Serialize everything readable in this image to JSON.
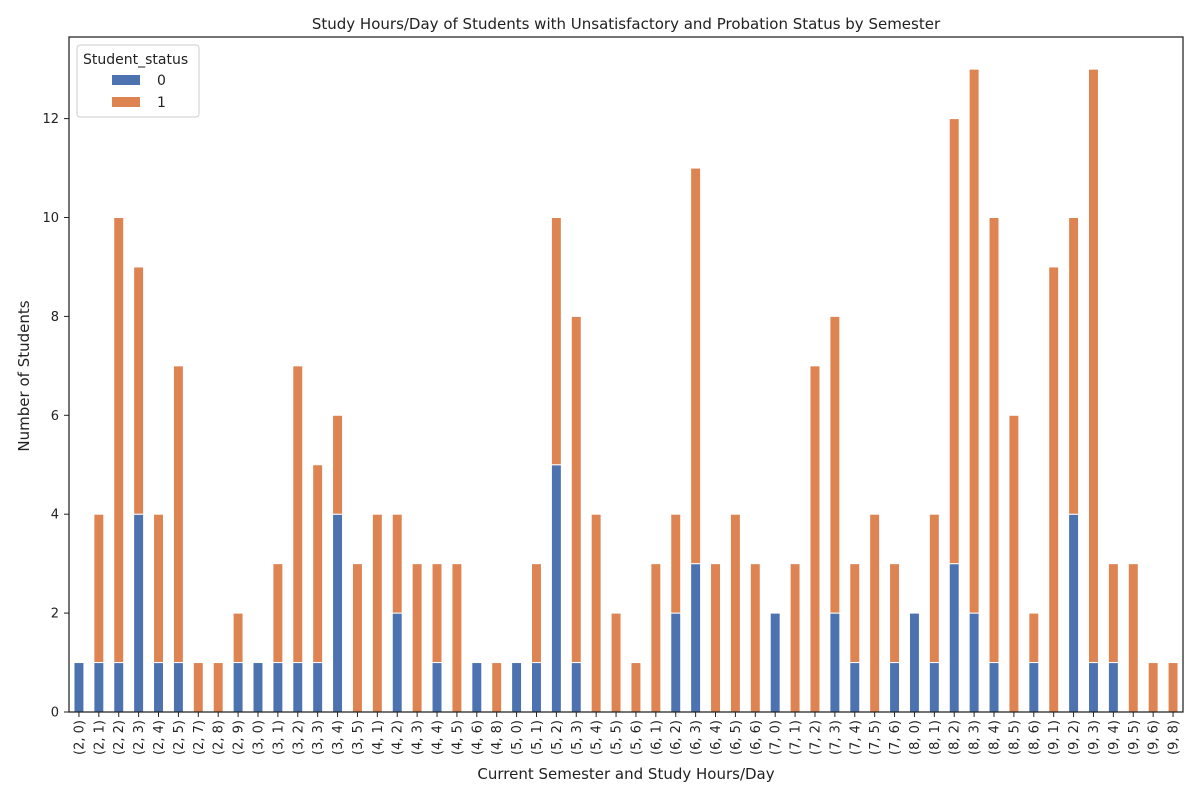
{
  "chart_data": {
    "type": "bar",
    "stacked": true,
    "title": "Study Hours/Day of Students with Unsatisfactory and Probation Status by Semester",
    "xlabel": "Current Semester and Study Hours/Day",
    "ylabel": "Number of Students",
    "ylim": [
      0,
      13.65
    ],
    "yticks": [
      0,
      2,
      4,
      6,
      8,
      10,
      12
    ],
    "grid": false,
    "legend": {
      "title": "Student_status",
      "position": "top-left"
    },
    "categories": [
      "(2, 0)",
      "(2, 1)",
      "(2, 2)",
      "(2, 3)",
      "(2, 4)",
      "(2, 5)",
      "(2, 7)",
      "(2, 8)",
      "(2, 9)",
      "(3, 0)",
      "(3, 1)",
      "(3, 2)",
      "(3, 3)",
      "(3, 4)",
      "(3, 5)",
      "(4, 1)",
      "(4, 2)",
      "(4, 3)",
      "(4, 4)",
      "(4, 5)",
      "(4, 6)",
      "(4, 8)",
      "(5, 0)",
      "(5, 1)",
      "(5, 2)",
      "(5, 3)",
      "(5, 4)",
      "(5, 5)",
      "(5, 6)",
      "(6, 1)",
      "(6, 2)",
      "(6, 3)",
      "(6, 4)",
      "(6, 5)",
      "(6, 6)",
      "(7, 0)",
      "(7, 1)",
      "(7, 2)",
      "(7, 3)",
      "(7, 4)",
      "(7, 5)",
      "(7, 6)",
      "(8, 0)",
      "(8, 1)",
      "(8, 2)",
      "(8, 3)",
      "(8, 4)",
      "(8, 5)",
      "(8, 6)",
      "(9, 1)",
      "(9, 2)",
      "(9, 3)",
      "(9, 4)",
      "(9, 5)",
      "(9, 6)",
      "(9, 8)"
    ],
    "series": [
      {
        "name": "0",
        "color": "#4c72b0",
        "values": [
          1,
          1,
          1,
          4,
          1,
          1,
          0,
          0,
          1,
          1,
          1,
          1,
          1,
          4,
          0,
          0,
          2,
          0,
          1,
          0,
          1,
          0,
          1,
          1,
          5,
          1,
          0,
          0,
          0,
          0,
          2,
          3,
          0,
          0,
          0,
          2,
          0,
          0,
          2,
          1,
          0,
          1,
          2,
          1,
          3,
          2,
          1,
          0,
          1,
          0,
          4,
          1,
          1,
          0,
          0,
          0
        ]
      },
      {
        "name": "1",
        "color": "#dd8452",
        "values": [
          0,
          3,
          9,
          5,
          3,
          6,
          1,
          1,
          1,
          0,
          2,
          6,
          4,
          2,
          3,
          4,
          2,
          3,
          2,
          3,
          0,
          1,
          0,
          2,
          5,
          7,
          4,
          2,
          1,
          3,
          2,
          8,
          3,
          4,
          3,
          0,
          3,
          7,
          6,
          2,
          4,
          2,
          0,
          3,
          9,
          11,
          9,
          6,
          1,
          9,
          6,
          12,
          2,
          3,
          1,
          1
        ]
      }
    ]
  }
}
